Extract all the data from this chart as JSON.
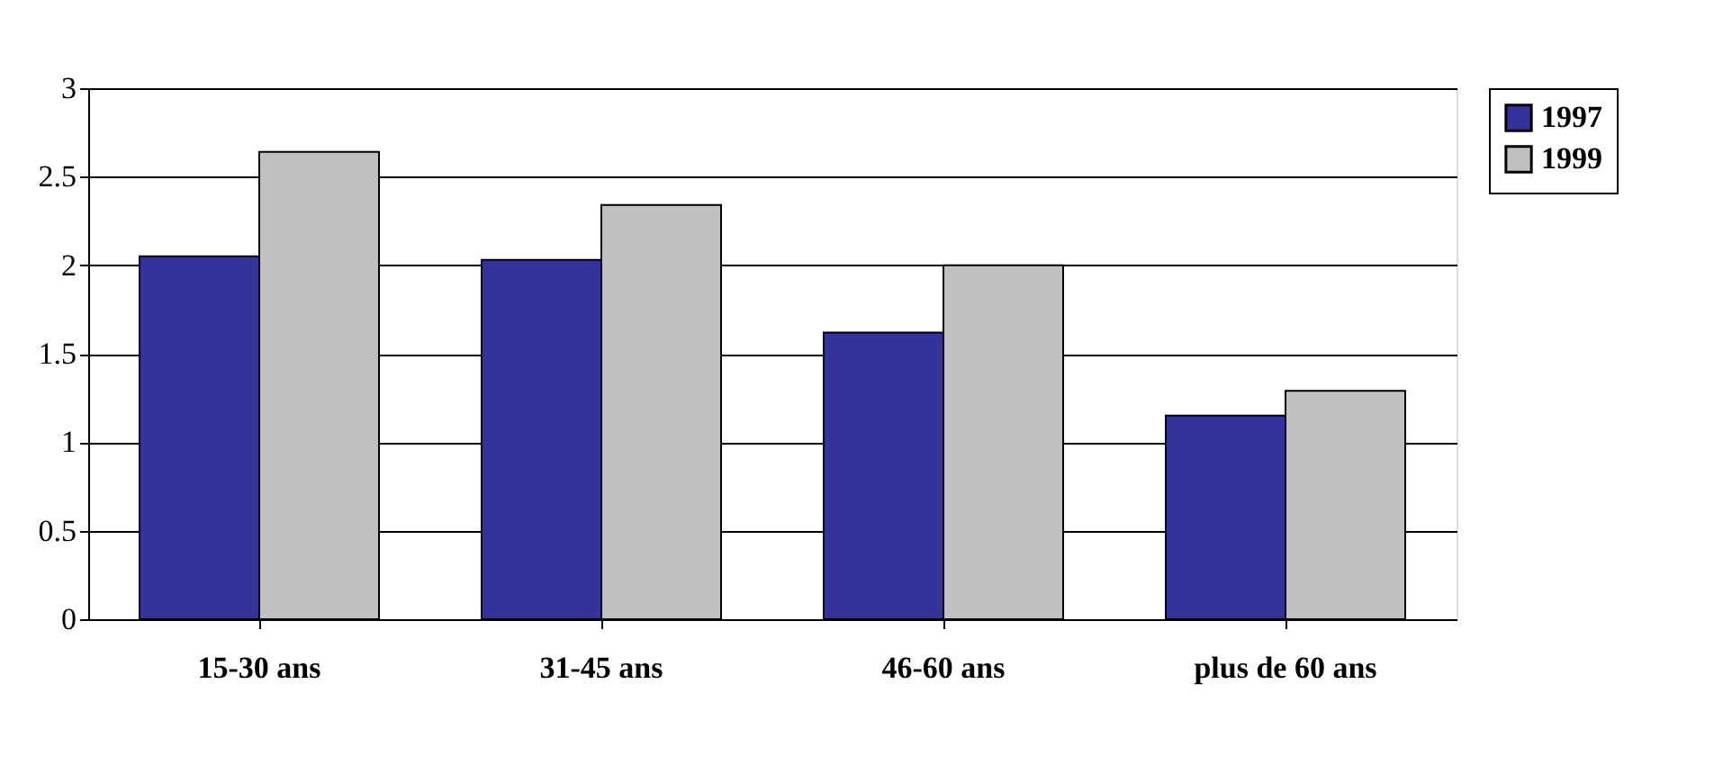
{
  "chart_data": {
    "type": "bar",
    "categories": [
      "15-30 ans",
      "31-45 ans",
      "46-60 ans",
      "plus de 60 ans"
    ],
    "series": [
      {
        "name": "1997",
        "color": "#333399",
        "values": [
          2.05,
          2.03,
          1.62,
          1.15
        ]
      },
      {
        "name": "1999",
        "color": "#c0c0c0",
        "values": [
          2.64,
          2.34,
          2.0,
          1.29
        ]
      }
    ],
    "ylim": [
      0,
      3
    ],
    "yticks": [
      0,
      0.5,
      1,
      1.5,
      2,
      2.5,
      3
    ],
    "grid": "y",
    "legend": "right"
  }
}
